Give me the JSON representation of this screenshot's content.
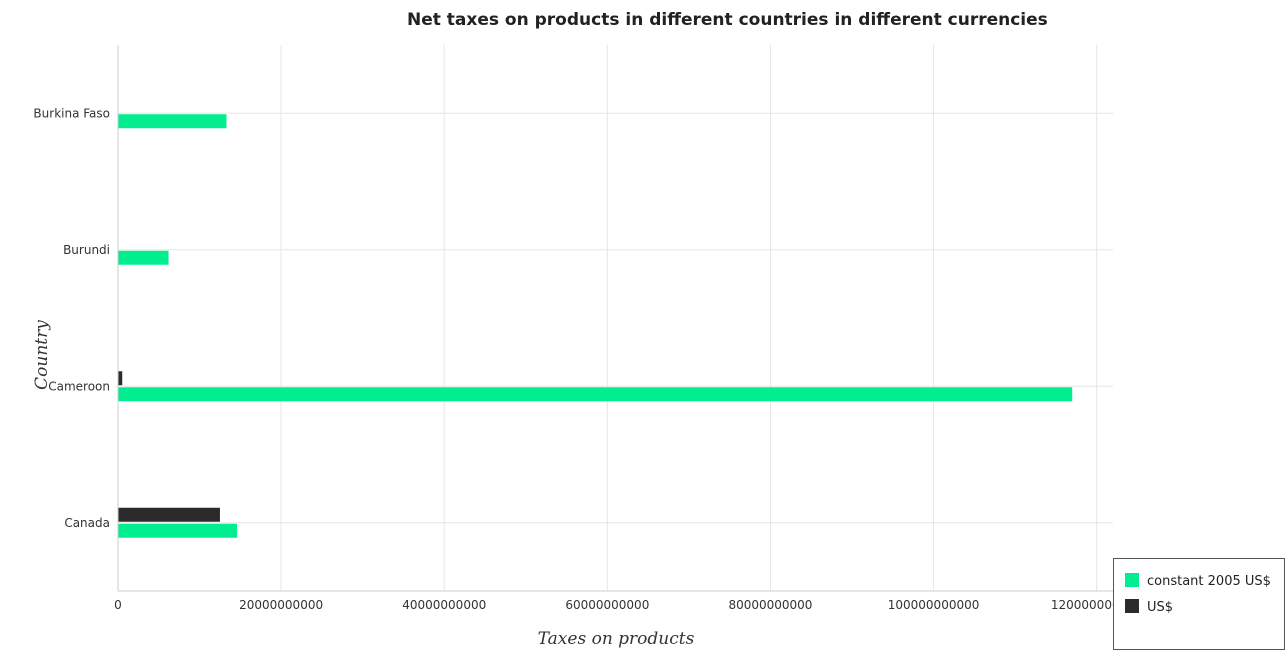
{
  "chart_data": {
    "type": "bar",
    "orientation": "horizontal",
    "title": "Net taxes on products in different countries in different currencies",
    "xlabel": "Taxes on products",
    "ylabel": "Country",
    "categories": [
      "Burkina Faso",
      "Burundi",
      "Cameroon",
      "Canada"
    ],
    "series": [
      {
        "name": "constant 2005 US$",
        "color": "#00ee90",
        "values": [
          13300000000,
          6200000000,
          117000000000,
          14600000000
        ]
      },
      {
        "name": "US$",
        "color": "#2b2b2b",
        "values": [
          30000000,
          15000000,
          520000000,
          12500000000
        ]
      }
    ],
    "xlim": [
      0,
      122000000000
    ],
    "xticks": [
      0,
      20000000000,
      40000000000,
      60000000000,
      80000000000,
      100000000000,
      120000000000
    ],
    "xtick_labels": [
      "0",
      "20000000000",
      "40000000000",
      "60000000000",
      "80000000000",
      "100000000000",
      "120000000000"
    ],
    "grid": true,
    "legend_position": "bottom-right"
  }
}
